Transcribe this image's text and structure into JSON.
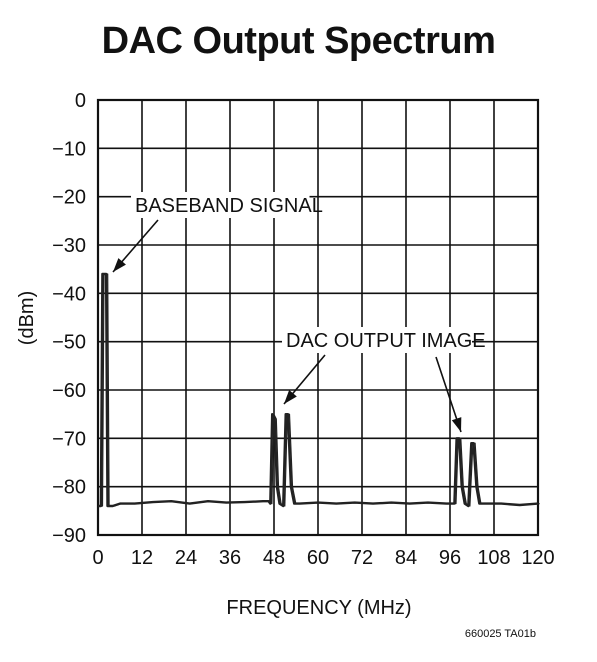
{
  "chart_data": {
    "type": "line",
    "title": "DAC Output Spectrum",
    "xlabel": "FREQUENCY (MHz)",
    "ylabel": "(dBm)",
    "xlim": [
      0,
      120
    ],
    "ylim": [
      -90,
      0
    ],
    "x_ticks": [
      0,
      12,
      24,
      36,
      48,
      60,
      72,
      84,
      96,
      108,
      120
    ],
    "y_ticks": [
      0,
      -10,
      -20,
      -30,
      -40,
      -50,
      -60,
      -70,
      -80,
      -90
    ],
    "grid": true,
    "series": [
      {
        "x": [
          0,
          0.8,
          1.2,
          1.5,
          1.8,
          2.2,
          2.6,
          3.0,
          4,
          6,
          10,
          15,
          20,
          25,
          30,
          35,
          40,
          45,
          46.5,
          47.0,
          47.5,
          48.2,
          48.8,
          49.5,
          50.5,
          51.2,
          51.8,
          52.6,
          53.5,
          55,
          60,
          65,
          70,
          75,
          80,
          85,
          90,
          95,
          96.5,
          97.2,
          97.8,
          98.5,
          99.2,
          100,
          101,
          101.8,
          102.4,
          103.2,
          104,
          106,
          110,
          115,
          120
        ],
        "y": [
          -84,
          -84,
          -36,
          -36,
          -36,
          -36,
          -84,
          -84,
          -84,
          -83.5,
          -83.5,
          -83.2,
          -83,
          -83.5,
          -83,
          -83.3,
          -83.2,
          -83,
          -83,
          -83.5,
          -65,
          -66,
          -80,
          -83.5,
          -84,
          -65,
          -65,
          -80,
          -83.5,
          -83.5,
          -83.3,
          -83.5,
          -83.3,
          -83.5,
          -83.3,
          -83.5,
          -83.3,
          -83.5,
          -83.5,
          -83.5,
          -70,
          -70,
          -80,
          -83.5,
          -84,
          -71,
          -71,
          -80,
          -83.5,
          -83.5,
          -83.5,
          -83.8,
          -83.5
        ]
      }
    ],
    "annotations": [
      "BASEBAND SIGNAL",
      "DAC OUTPUT IMAGE"
    ]
  },
  "figure_id": "660025 TA01b",
  "colors": {
    "trace": "#222222",
    "grid": "#111111",
    "text": "#111111",
    "background": "#ffffff"
  }
}
